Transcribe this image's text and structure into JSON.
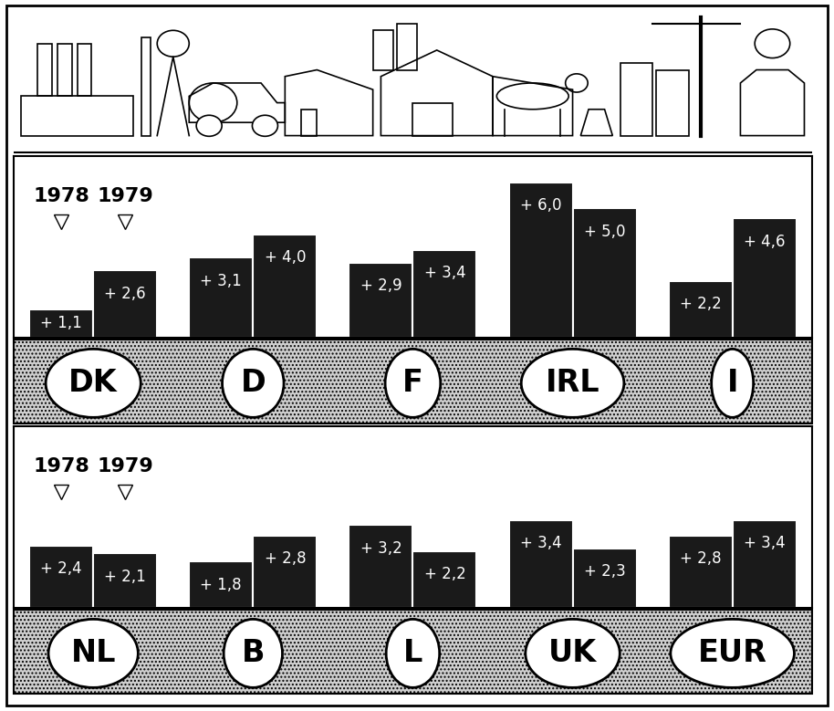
{
  "chart_data": [
    {
      "type": "bar",
      "categories": [
        "DK",
        "D",
        "F",
        "IRL",
        "I"
      ],
      "series": [
        {
          "name": "1978",
          "color": "#1a1a1a",
          "values": [
            1.1,
            3.1,
            2.9,
            6.0,
            2.2
          ],
          "value_labels": [
            "+ 1,1",
            "+ 3,1",
            "+ 2,9",
            "+ 6,0",
            "+ 2,2"
          ]
        },
        {
          "name": "1979",
          "color": "#1a1a1a",
          "values": [
            2.6,
            4.0,
            3.4,
            5.0,
            4.6
          ],
          "value_labels": [
            "+ 2,6",
            "+ 4,0",
            "+ 3,4",
            "+ 5,0",
            "+ 4,6"
          ]
        }
      ],
      "ylim": [
        0,
        7
      ],
      "yticks": [],
      "data_labels": true,
      "tick_labels": "x"
    },
    {
      "type": "bar",
      "categories": [
        "NL",
        "B",
        "L",
        "UK",
        "EUR"
      ],
      "series": [
        {
          "name": "1978",
          "color": "#1a1a1a",
          "values": [
            2.4,
            1.8,
            3.2,
            3.4,
            2.8
          ],
          "value_labels": [
            "+ 2,4",
            "+ 1,8",
            "+ 3,2",
            "+ 3,4",
            "+ 2,8"
          ]
        },
        {
          "name": "1979",
          "color": "#1a1a1a",
          "values": [
            2.1,
            2.8,
            2.2,
            2.3,
            3.4
          ],
          "value_labels": [
            "+ 2,1",
            "+ 2,8",
            "+ 2,2",
            "+ 2,3",
            "+ 3,4"
          ]
        }
      ],
      "ylim": [
        0,
        7
      ],
      "yticks": [],
      "data_labels": true,
      "tick_labels": "x"
    }
  ]
}
